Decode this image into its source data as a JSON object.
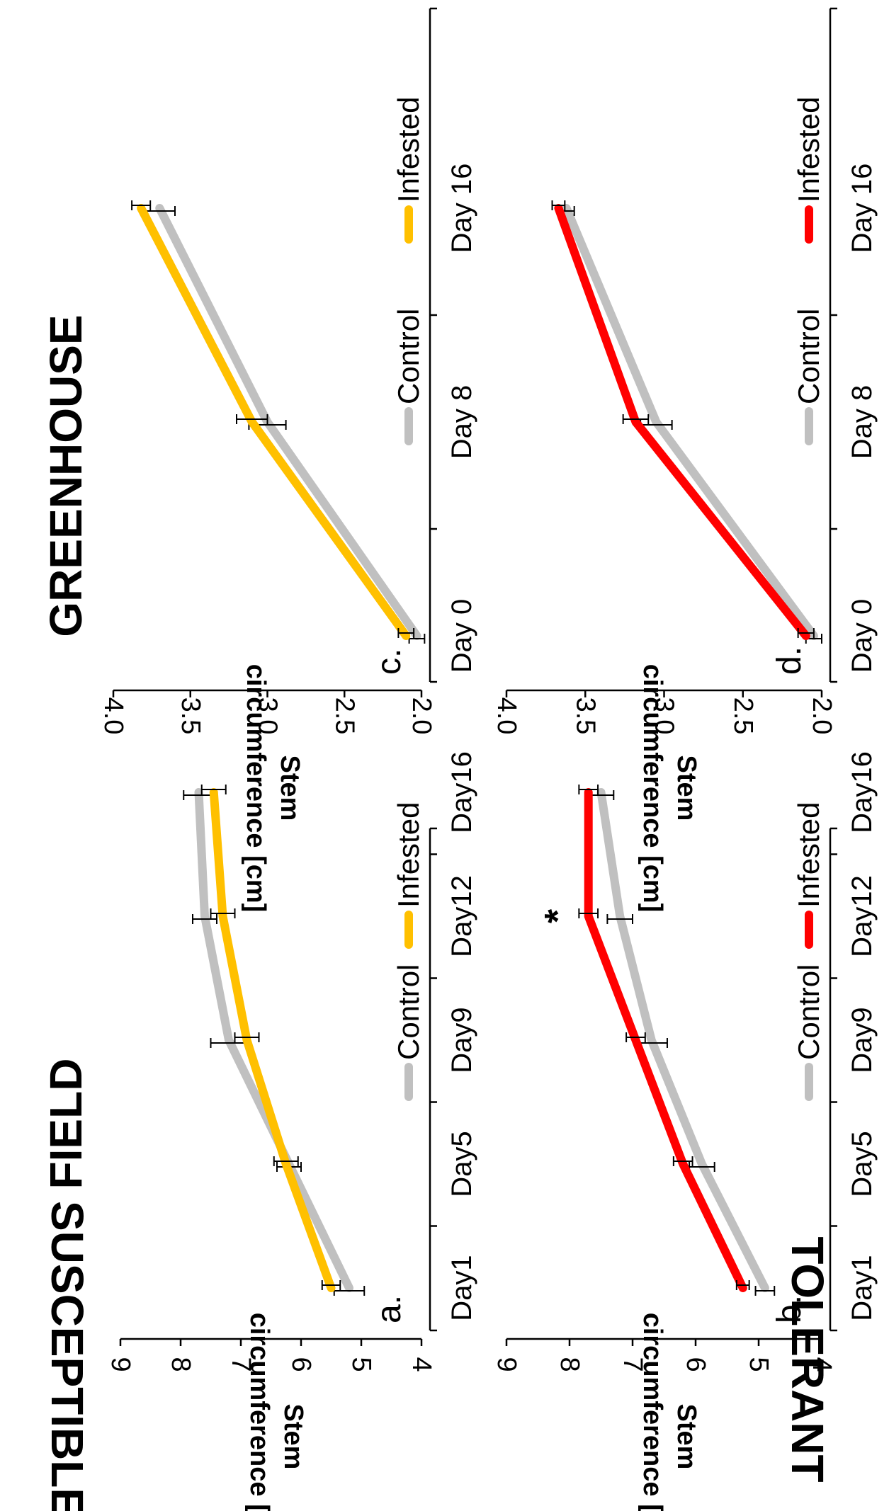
{
  "figure": {
    "col_headers": [
      "FIELD",
      "GREENHOUSE"
    ],
    "row_headers": [
      "SUSCEPTIBLE",
      "TOLERANT"
    ],
    "ylabel_line1": "Stem",
    "ylabel_line2": "circumference [cm]",
    "colors": {
      "control": "#c0c0c0",
      "infested_susceptible": "#ffc000",
      "infested_tolerant": "#ff0000"
    }
  },
  "chart_data": [
    {
      "id": "a",
      "panel_label": "a.",
      "type": "line",
      "x": [
        "Day1",
        "Day5",
        "Day9",
        "Day12",
        "Day16"
      ],
      "ylim": [
        4,
        9
      ],
      "yticks": [
        "4",
        "5",
        "6",
        "7",
        "8",
        "9"
      ],
      "ylabel": "Stem circumference [cm]",
      "series": [
        {
          "name": "Control",
          "values": [
            5.2,
            6.2,
            7.2,
            7.6,
            7.7
          ],
          "err": [
            0.25,
            0.2,
            0.3,
            0.2,
            0.25
          ],
          "color": "#c0c0c0"
        },
        {
          "name": "Infested",
          "values": [
            5.5,
            6.25,
            6.9,
            7.3,
            7.45
          ],
          "err": [
            0.15,
            0.2,
            0.2,
            0.2,
            0.2
          ],
          "color": "#ffc000"
        }
      ],
      "legend": [
        "Control",
        "Infested"
      ],
      "annotations": []
    },
    {
      "id": "b",
      "panel_label": "b.",
      "type": "line",
      "x": [
        "Day1",
        "Day5",
        "Day9",
        "Day12",
        "Day16"
      ],
      "ylim": [
        4,
        9
      ],
      "yticks": [
        "4",
        "5",
        "6",
        "7",
        "8",
        "9"
      ],
      "ylabel": "Stem circumference [cm]",
      "series": [
        {
          "name": "Control",
          "values": [
            4.9,
            5.9,
            6.7,
            7.2,
            7.5
          ],
          "err": [
            0.15,
            0.2,
            0.25,
            0.2,
            0.2
          ],
          "color": "#c0c0c0"
        },
        {
          "name": "Infested",
          "values": [
            5.25,
            6.2,
            6.95,
            7.7,
            7.7
          ],
          "err": [
            0.1,
            0.15,
            0.15,
            0.15,
            0.15
          ],
          "color": "#ff0000"
        }
      ],
      "legend": [
        "Control",
        "Infested"
      ],
      "annotations": [
        {
          "text": "*",
          "x": "Day12",
          "y": 8.1
        }
      ]
    },
    {
      "id": "c",
      "panel_label": "c.",
      "type": "line",
      "x": [
        "Day 0",
        "Day 8",
        "Day 16"
      ],
      "ylim": [
        2.0,
        4.0
      ],
      "yticks": [
        "2.0",
        "2.5",
        "3.0",
        "3.5",
        "4.0"
      ],
      "ylabel": "Stem circumference [cm]",
      "series": [
        {
          "name": "Control",
          "values": [
            2.03,
            3.0,
            3.7
          ],
          "err": [
            0.05,
            0.12,
            0.1
          ],
          "color": "#c0c0c0"
        },
        {
          "name": "Infested",
          "values": [
            2.1,
            3.1,
            3.82
          ],
          "err": [
            0.05,
            0.1,
            0.06
          ],
          "color": "#ffc000"
        }
      ],
      "legend": [
        "Control",
        "Infested"
      ],
      "annotations": []
    },
    {
      "id": "d",
      "panel_label": "d.",
      "type": "line",
      "x": [
        "Day 0",
        "Day 8",
        "Day 16"
      ],
      "ylim": [
        2.0,
        4.0
      ],
      "yticks": [
        "2.0",
        "2.5",
        "3.0",
        "3.5",
        "4.0"
      ],
      "ylabel": "Stem circumference [cm]",
      "series": [
        {
          "name": "Control",
          "values": [
            2.05,
            3.05,
            3.62
          ],
          "err": [
            0.05,
            0.1,
            0.05
          ],
          "color": "#c0c0c0"
        },
        {
          "name": "Infested",
          "values": [
            2.1,
            3.18,
            3.67
          ],
          "err": [
            0.05,
            0.08,
            0.04
          ],
          "color": "#ff0000"
        }
      ],
      "legend": [
        "Control",
        "Infested"
      ],
      "annotations": []
    }
  ]
}
